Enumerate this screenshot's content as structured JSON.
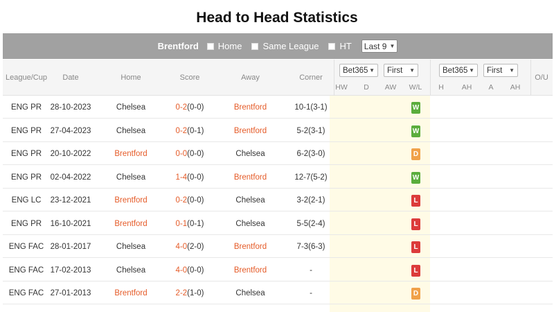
{
  "title": "Head to Head Statistics",
  "filter": {
    "team": "Brentford",
    "options": [
      "Home",
      "Same League",
      "HT"
    ],
    "last_select": "Last 9"
  },
  "columns": {
    "league": "League/Cup",
    "date": "Date",
    "home": "Home",
    "score": "Score",
    "away": "Away",
    "corner": "Corner",
    "ou": "O/U"
  },
  "odds1": {
    "company": "Bet365",
    "period": "First",
    "sub": [
      "HW",
      "D",
      "AW",
      "W/L"
    ]
  },
  "odds2": {
    "company": "Bet365",
    "period": "First",
    "sub": [
      "H",
      "AH",
      "A",
      "AH"
    ]
  },
  "colors": {
    "highlight": "#e55b28",
    "win": "#5aad3c",
    "draw": "#f0a149",
    "loss": "#dc3b3b",
    "odds_bg": "#fffbe6"
  },
  "rows": [
    {
      "league": "ENG PR",
      "date": "28-10-2023",
      "home": "Chelsea",
      "score": "0-2",
      "ht": "(0-0)",
      "away": "Brentford",
      "corner": "10-1(3-1)",
      "wl": "W",
      "home_hl": false
    },
    {
      "league": "ENG PR",
      "date": "27-04-2023",
      "home": "Chelsea",
      "score": "0-2",
      "ht": "(0-1)",
      "away": "Brentford",
      "corner": "5-2(3-1)",
      "wl": "W",
      "home_hl": false
    },
    {
      "league": "ENG PR",
      "date": "20-10-2022",
      "home": "Brentford",
      "score": "0-0",
      "ht": "(0-0)",
      "away": "Chelsea",
      "corner": "6-2(3-0)",
      "wl": "D",
      "home_hl": true
    },
    {
      "league": "ENG PR",
      "date": "02-04-2022",
      "home": "Chelsea",
      "score": "1-4",
      "ht": "(0-0)",
      "away": "Brentford",
      "corner": "12-7(5-2)",
      "wl": "W",
      "home_hl": false
    },
    {
      "league": "ENG LC",
      "date": "23-12-2021",
      "home": "Brentford",
      "score": "0-2",
      "ht": "(0-0)",
      "away": "Chelsea",
      "corner": "3-2(2-1)",
      "wl": "L",
      "home_hl": true
    },
    {
      "league": "ENG PR",
      "date": "16-10-2021",
      "home": "Brentford",
      "score": "0-1",
      "ht": "(0-1)",
      "away": "Chelsea",
      "corner": "5-5(2-4)",
      "wl": "L",
      "home_hl": true
    },
    {
      "league": "ENG FAC",
      "date": "28-01-2017",
      "home": "Chelsea",
      "score": "4-0",
      "ht": "(2-0)",
      "away": "Brentford",
      "corner": "7-3(6-3)",
      "wl": "L",
      "home_hl": false
    },
    {
      "league": "ENG FAC",
      "date": "17-02-2013",
      "home": "Chelsea",
      "score": "4-0",
      "ht": "(0-0)",
      "away": "Brentford",
      "corner": "-",
      "wl": "L",
      "home_hl": false
    },
    {
      "league": "ENG FAC",
      "date": "27-01-2013",
      "home": "Brentford",
      "score": "2-2",
      "ht": "(1-0)",
      "away": "Chelsea",
      "corner": "-",
      "wl": "D",
      "home_hl": true
    }
  ]
}
